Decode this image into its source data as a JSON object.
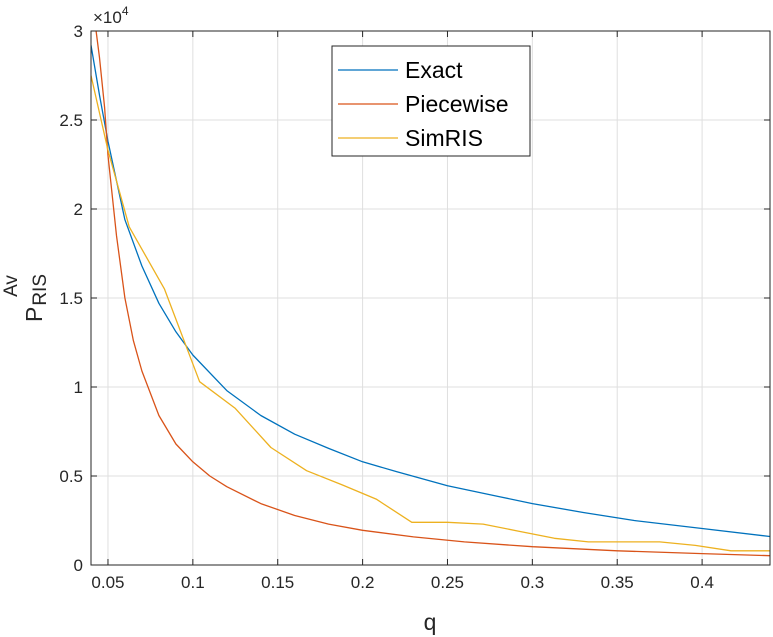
{
  "chart_data": {
    "type": "line",
    "xlabel": "q",
    "ylabel": {
      "main": "P",
      "sup": "Av",
      "sub": "RIS"
    },
    "exponent": {
      "base": "×10",
      "power": "4"
    },
    "xlim": [
      0.04,
      0.44
    ],
    "ylim": [
      0,
      30000
    ],
    "xticks": [
      0.05,
      0.1,
      0.15,
      0.2,
      0.25,
      0.3,
      0.35,
      0.4
    ],
    "xtick_labels": [
      "0.05",
      "0.1",
      "0.15",
      "0.2",
      "0.25",
      "0.3",
      "0.35",
      "0.4"
    ],
    "yticks": [
      0,
      5000,
      10000,
      15000,
      20000,
      25000,
      30000
    ],
    "ytick_labels": [
      "0",
      "0.5",
      "1",
      "1.5",
      "2",
      "2.5",
      "3"
    ],
    "grid": true,
    "legend_position": "top-center",
    "series": [
      {
        "name": "Exact",
        "color": "#0072BD",
        "x": [
          0.04,
          0.045,
          0.05,
          0.06,
          0.07,
          0.08,
          0.09,
          0.1,
          0.12,
          0.14,
          0.16,
          0.18,
          0.2,
          0.22,
          0.25,
          0.28,
          0.3,
          0.33,
          0.36,
          0.4,
          0.44
        ],
        "y": [
          29200,
          26400,
          23800,
          19400,
          16800,
          14700,
          13100,
          11800,
          9800,
          8400,
          7350,
          6550,
          5800,
          5250,
          4450,
          3850,
          3450,
          2950,
          2500,
          2050,
          1600
        ]
      },
      {
        "name": "Piecewise",
        "color": "#D95319",
        "x": [
          0.043,
          0.045,
          0.048,
          0.05,
          0.055,
          0.06,
          0.065,
          0.07,
          0.08,
          0.09,
          0.1,
          0.11,
          0.12,
          0.14,
          0.16,
          0.18,
          0.2,
          0.23,
          0.26,
          0.3,
          0.35,
          0.4,
          0.44
        ],
        "y": [
          30000,
          28500,
          25700,
          23000,
          18500,
          15000,
          12600,
          10900,
          8400,
          6800,
          5800,
          5000,
          4400,
          3450,
          2780,
          2300,
          1950,
          1580,
          1300,
          1030,
          800,
          640,
          520
        ]
      },
      {
        "name": "SimRIS",
        "color": "#EDB120",
        "x": [
          0.04,
          0.05,
          0.0625,
          0.0833,
          0.104,
          0.125,
          0.146,
          0.167,
          0.188,
          0.208,
          0.229,
          0.25,
          0.271,
          0.292,
          0.313,
          0.333,
          0.354,
          0.375,
          0.396,
          0.417,
          0.44
        ],
        "y": [
          27500,
          23300,
          19000,
          15500,
          10300,
          8800,
          6600,
          5300,
          4500,
          3700,
          2400,
          2400,
          2300,
          1900,
          1500,
          1300,
          1300,
          1300,
          1100,
          800,
          800
        ]
      }
    ]
  }
}
